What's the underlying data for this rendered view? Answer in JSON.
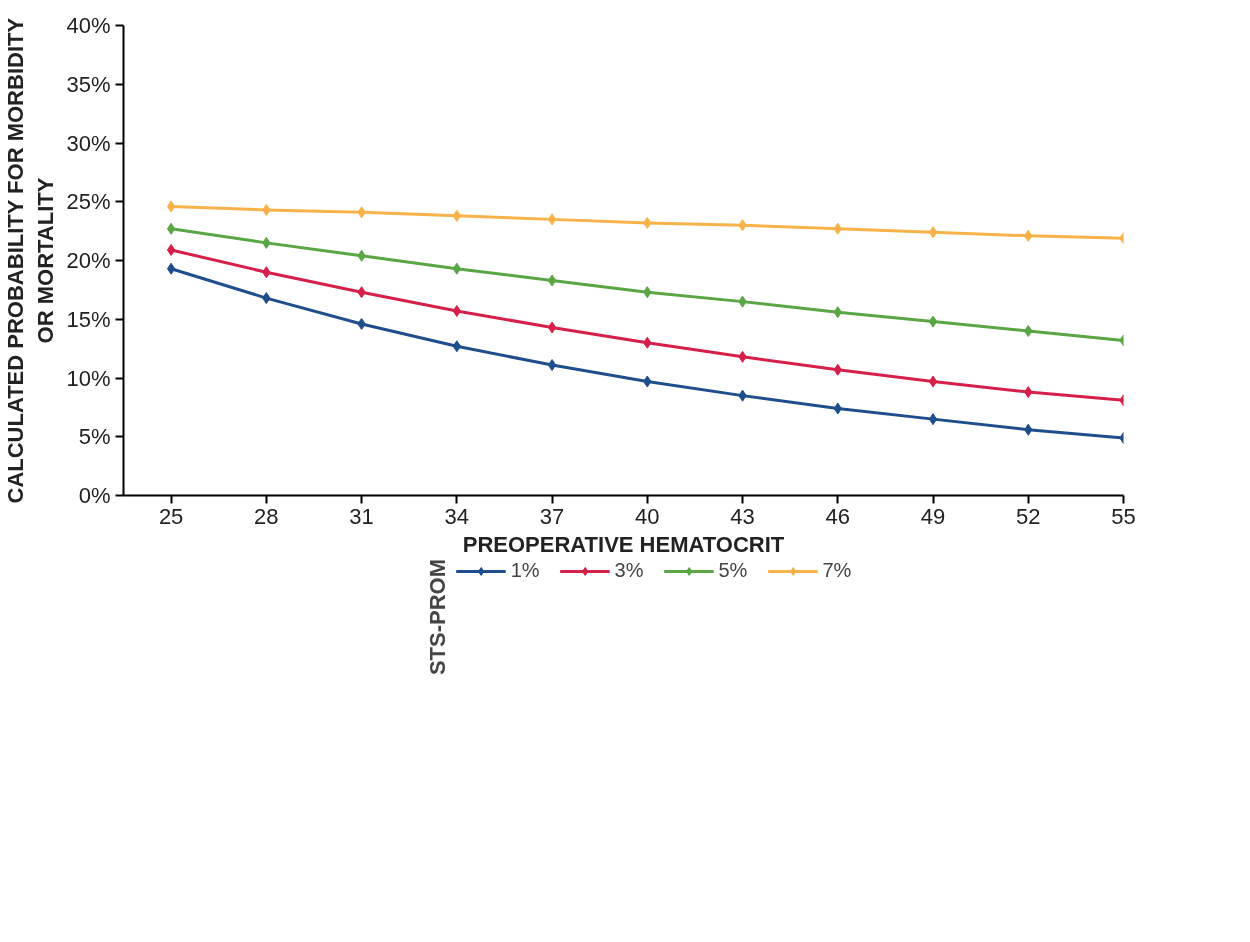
{
  "chart_data": {
    "type": "line",
    "xlabel": "PREOPERATIVE HEMATOCRIT",
    "ylabel": "CALCULATED PROBABILITY FOR MORBIDITY OR MORTALITY",
    "legend_title": "STS-PROM",
    "legend": "bottom",
    "marker": "diamond",
    "line_style": "solid",
    "grid": false,
    "x": [
      25,
      28,
      31,
      34,
      37,
      40,
      43,
      46,
      49,
      52,
      55
    ],
    "xlim": [
      23.5,
      55
    ],
    "xticks": [
      25,
      28,
      31,
      34,
      37,
      40,
      43,
      46,
      49,
      52,
      55
    ],
    "ylim": [
      0,
      40
    ],
    "yticks": [
      {
        "value": 0,
        "label": "0%"
      },
      {
        "value": 5,
        "label": "5%"
      },
      {
        "value": 10,
        "label": "10%"
      },
      {
        "value": 15,
        "label": "15%"
      },
      {
        "value": 20,
        "label": "20%"
      },
      {
        "value": 25,
        "label": "25%"
      },
      {
        "value": 30,
        "label": "30%"
      },
      {
        "value": 35,
        "label": "35%"
      },
      {
        "value": 40,
        "label": "40%"
      }
    ],
    "series": [
      {
        "name": "1%",
        "color": "#1f4e8c",
        "values": [
          19.3,
          16.8,
          14.6,
          12.7,
          11.1,
          9.7,
          8.5,
          7.4,
          6.5,
          5.6,
          4.9
        ]
      },
      {
        "name": "3%",
        "color": "#d6204a",
        "values": [
          20.9,
          19.0,
          17.3,
          15.7,
          14.3,
          13.0,
          11.8,
          10.7,
          9.7,
          8.8,
          8.1
        ]
      },
      {
        "name": "5%",
        "color": "#5aa645",
        "values": [
          22.7,
          21.5,
          20.4,
          19.3,
          18.3,
          17.3,
          16.5,
          15.6,
          14.8,
          14.0,
          13.2
        ]
      },
      {
        "name": "7%",
        "color": "#f8b24a",
        "values": [
          24.6,
          24.3,
          24.1,
          23.8,
          23.5,
          23.2,
          23.0,
          22.7,
          22.4,
          22.1,
          21.9
        ]
      }
    ]
  }
}
